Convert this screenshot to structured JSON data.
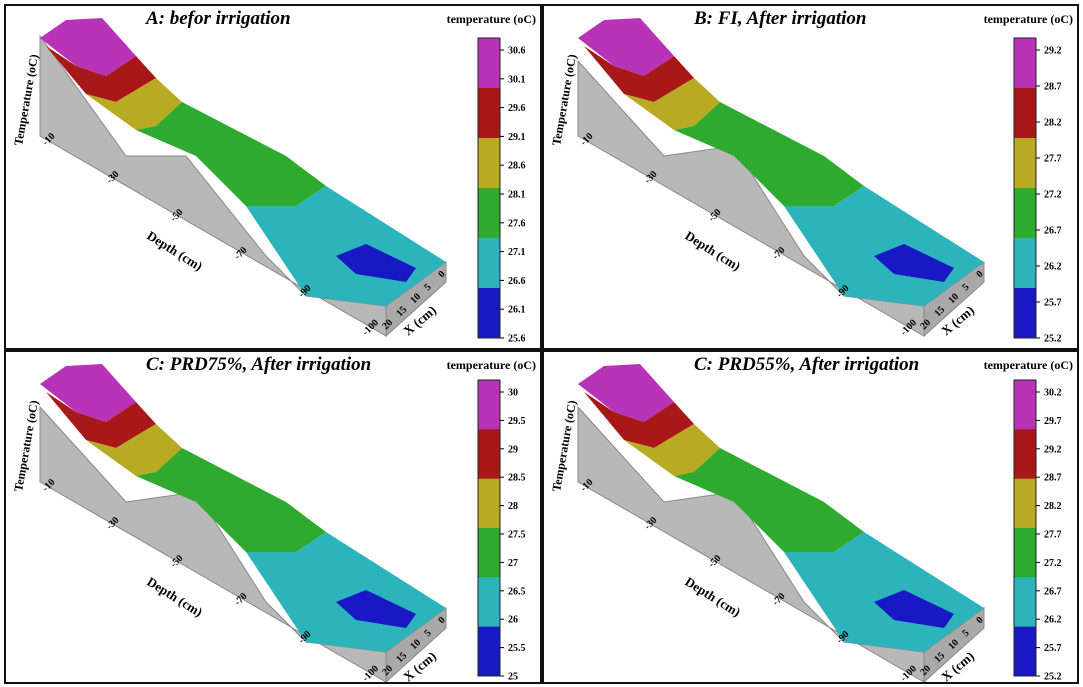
{
  "chart_data": [
    {
      "type": "surface",
      "title": "A: befor irrigation",
      "zlabel": "Temperature (oC)",
      "xlabel": "Depth (cm)",
      "ylabel": "X (cm)",
      "legend_title": "temperature (oC)",
      "legend_ticks": [
        "30.6",
        "30.1",
        "29.6",
        "29.1",
        "28.6",
        "28.1",
        "27.6",
        "27.1",
        "26.6",
        "26.1",
        "25.6"
      ],
      "depth_ticks": [
        "-10",
        "-30",
        "-50",
        "-70",
        "-90",
        "-100"
      ],
      "x_ticks": [
        "0",
        "5",
        "10",
        "15",
        "20"
      ]
    },
    {
      "type": "surface",
      "title": "B: FI, After irrigation",
      "zlabel": "Temperature (oC)",
      "xlabel": "Depth (cm)",
      "ylabel": "X (cm)",
      "legend_title": "temperature (oC)",
      "legend_ticks": [
        "29.2",
        "28.7",
        "28.2",
        "27.7",
        "27.2",
        "26.7",
        "26.2",
        "25.7",
        "25.2"
      ],
      "depth_ticks": [
        "-10",
        "-30",
        "-50",
        "-70",
        "-90",
        "-100"
      ],
      "x_ticks": [
        "0",
        "5",
        "10",
        "15",
        "20"
      ]
    },
    {
      "type": "surface",
      "title": "C: PRD75%, After irrigation",
      "zlabel": "Temperature (oC)",
      "xlabel": "Depth (cm)",
      "ylabel": "X (cm)",
      "legend_title": "temperature (oC)",
      "legend_ticks": [
        "30",
        "29.5",
        "29",
        "28.5",
        "28",
        "27.5",
        "27",
        "26.5",
        "26",
        "25.5",
        "25"
      ],
      "depth_ticks": [
        "-10",
        "-30",
        "-50",
        "-70",
        "-90",
        "-100"
      ],
      "x_ticks": [
        "0",
        "5",
        "10",
        "15",
        "20"
      ]
    },
    {
      "type": "surface",
      "title": "C: PRD55%, After irrigation",
      "zlabel": "Temperature (oC)",
      "xlabel": "Depth (cm)",
      "ylabel": "X (cm)",
      "legend_title": "temperature (oC)",
      "legend_ticks": [
        "30.2",
        "29.7",
        "29.2",
        "28.7",
        "28.2",
        "27.7",
        "27.2",
        "26.7",
        "26.2",
        "25.7",
        "25.2"
      ],
      "depth_ticks": [
        "-10",
        "-30",
        "-50",
        "-70",
        "-90",
        "-100"
      ],
      "x_ticks": [
        "0",
        "5",
        "10",
        "15",
        "20"
      ]
    }
  ],
  "colors": {
    "band_magenta": "#b833b8",
    "band_red": "#a81818",
    "band_olive": "#b8aa22",
    "band_green": "#2eaa2e",
    "band_cyan": "#2cb4bc",
    "band_blue": "#1818c4",
    "side_gray": "#b8b8b8"
  }
}
